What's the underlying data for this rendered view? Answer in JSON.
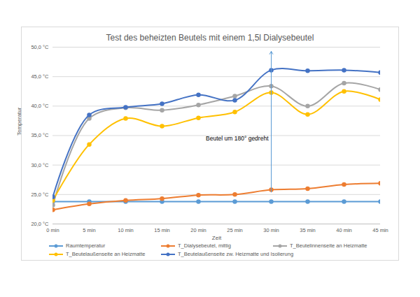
{
  "chart_data": {
    "type": "line",
    "title": "Test des beheizten Beutels mit einem 1,5l Dialysebeutel",
    "x_label": "Zeit",
    "y_label": "Temperatur",
    "categories": [
      "0 min",
      "5 min",
      "10 min",
      "15 min",
      "20 min",
      "25 min",
      "30 min",
      "35 min",
      "40 min",
      "45 min"
    ],
    "ylim": [
      20,
      50
    ],
    "yticks": [
      {
        "value": 20,
        "label": "20,0 °C"
      },
      {
        "value": 25,
        "label": "25,0 °C"
      },
      {
        "value": 30,
        "label": "30,0 °C"
      },
      {
        "value": 35,
        "label": "35,0 °C"
      },
      {
        "value": 40,
        "label": "40,0 °C"
      },
      {
        "value": 45,
        "label": "45,0 °C"
      },
      {
        "value": 50,
        "label": "50,0 °C"
      }
    ],
    "grid": true,
    "legend": "bottom",
    "marker": "circle",
    "line_style": "smooth",
    "series": [
      {
        "name": "Raumtemperatur",
        "color": "#5B9BD5",
        "values": [
          23.8,
          23.8,
          23.8,
          23.8,
          23.8,
          23.8,
          23.8,
          23.8,
          23.8,
          23.8
        ]
      },
      {
        "name": "T_Dialysebeutel, mittig",
        "color": "#ED7D31",
        "values": [
          22.4,
          23.4,
          24.0,
          24.3,
          24.9,
          25.0,
          25.8,
          26.0,
          26.7,
          26.9
        ]
      },
      {
        "name": "T_Beutelinnenseite an Heizmatte",
        "color": "#A5A5A5",
        "values": [
          23.2,
          37.9,
          39.7,
          39.3,
          40.2,
          41.7,
          43.4,
          40.0,
          43.9,
          42.8
        ]
      },
      {
        "name": "T_Beutelaußenseite an Heizmatte",
        "color": "#FFC000",
        "values": [
          24.0,
          33.5,
          37.9,
          36.6,
          38.0,
          39.0,
          42.3,
          38.6,
          42.5,
          41.1
        ]
      },
      {
        "name": "T_Beutelaußenseite zw. Heizmatte und Isolierung",
        "color": "#4472C4",
        "values": [
          24.6,
          38.5,
          39.8,
          40.4,
          41.9,
          41.0,
          46.1,
          46.0,
          46.1,
          45.7
        ]
      }
    ],
    "annotations": [
      {
        "text": "Beutel um 180° gedreht",
        "x": "30 min",
        "y": 34.5,
        "arrow": [
          25.4,
          49.3
        ],
        "color": "#5B9BD5"
      }
    ]
  }
}
